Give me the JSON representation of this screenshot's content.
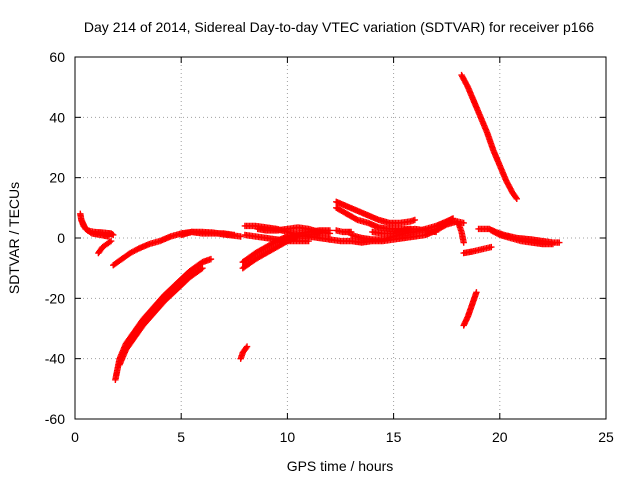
{
  "chart_data": {
    "type": "scatter",
    "title": "Day 214 of 2014, Sidereal Day-to-day VTEC variation (SDTVAR) for receiver p166",
    "xlabel": "GPS time / hours",
    "ylabel": "SDTVAR / TECUs",
    "xlim": [
      0,
      25
    ],
    "ylim": [
      -60,
      60
    ],
    "xticks": [
      0,
      5,
      10,
      15,
      20,
      25
    ],
    "yticks": [
      -60,
      -40,
      -20,
      0,
      20,
      40,
      60
    ],
    "grid": true,
    "marker": "+",
    "color": "#ff0000",
    "series": [
      {
        "points": [
          [
            0.25,
            8
          ],
          [
            0.3,
            6
          ],
          [
            0.4,
            4
          ],
          [
            0.6,
            2.5
          ],
          [
            0.9,
            2
          ],
          [
            1.3,
            1.8
          ],
          [
            1.7,
            1.5
          ],
          [
            1.8,
            1
          ]
        ]
      },
      {
        "points": [
          [
            0.3,
            6
          ],
          [
            0.5,
            3
          ],
          [
            0.8,
            1.5
          ],
          [
            1.2,
            1
          ],
          [
            1.6,
            0.5
          ]
        ]
      },
      {
        "points": [
          [
            1.1,
            -5
          ],
          [
            1.3,
            -3
          ],
          [
            1.5,
            -2
          ],
          [
            1.7,
            -1
          ]
        ]
      },
      {
        "points": [
          [
            1.8,
            -9
          ],
          [
            2.2,
            -7
          ],
          [
            2.6,
            -5
          ],
          [
            3.0,
            -3.5
          ],
          [
            3.5,
            -2
          ],
          [
            4.0,
            -1
          ],
          [
            4.5,
            0.5
          ],
          [
            5.0,
            1.5
          ],
          [
            5.5,
            2
          ],
          [
            6.0,
            1.5
          ],
          [
            6.5,
            1.5
          ],
          [
            7.0,
            1.5
          ],
          [
            7.5,
            1
          ]
        ]
      },
      {
        "points": [
          [
            5.0,
            1
          ],
          [
            5.5,
            2
          ],
          [
            6.0,
            2
          ],
          [
            6.5,
            1.8
          ],
          [
            7.0,
            1.2
          ],
          [
            7.8,
            0.5
          ]
        ]
      },
      {
        "points": [
          [
            1.9,
            -47
          ],
          [
            2.1,
            -40
          ],
          [
            2.4,
            -35
          ],
          [
            2.8,
            -31
          ],
          [
            3.2,
            -27
          ],
          [
            3.7,
            -23
          ],
          [
            4.2,
            -19
          ],
          [
            4.8,
            -15
          ],
          [
            5.4,
            -11
          ],
          [
            6.0,
            -8
          ],
          [
            6.4,
            -7
          ]
        ]
      },
      {
        "points": [
          [
            2.1,
            -42
          ],
          [
            2.4,
            -37
          ],
          [
            2.8,
            -33
          ],
          [
            3.2,
            -29
          ],
          [
            3.7,
            -25
          ],
          [
            4.2,
            -21
          ],
          [
            4.8,
            -17
          ],
          [
            5.4,
            -13
          ],
          [
            6.0,
            -10
          ]
        ]
      },
      {
        "points": [
          [
            7.8,
            -40
          ],
          [
            7.9,
            -38
          ],
          [
            8.1,
            -36
          ]
        ]
      },
      {
        "points": [
          [
            7.9,
            -8
          ],
          [
            8.5,
            -5
          ],
          [
            9.0,
            -3
          ],
          [
            9.5,
            -1
          ],
          [
            10.0,
            0.5
          ],
          [
            10.5,
            1.5
          ],
          [
            11.0,
            2
          ],
          [
            11.5,
            2.5
          ],
          [
            12.0,
            2.5
          ]
        ]
      },
      {
        "points": [
          [
            7.9,
            -10
          ],
          [
            8.5,
            -7
          ],
          [
            9.0,
            -5
          ],
          [
            9.5,
            -3
          ],
          [
            10.0,
            -1
          ],
          [
            10.5,
            0.5
          ],
          [
            11.0,
            1
          ],
          [
            11.5,
            1.5
          ]
        ]
      },
      {
        "points": [
          [
            8.0,
            4
          ],
          [
            8.5,
            4
          ],
          [
            9.0,
            3.5
          ],
          [
            9.5,
            3
          ],
          [
            10.0,
            2
          ],
          [
            10.5,
            1
          ],
          [
            11.0,
            0.5
          ],
          [
            11.5,
            0
          ],
          [
            12.0,
            -0.5
          ]
        ]
      },
      {
        "points": [
          [
            8.0,
            1
          ],
          [
            8.5,
            0.5
          ],
          [
            9.0,
            0
          ],
          [
            9.5,
            -0.5
          ],
          [
            10.0,
            -1
          ],
          [
            10.5,
            -1
          ],
          [
            11.0,
            -1
          ]
        ]
      },
      {
        "points": [
          [
            8.6,
            3
          ],
          [
            9.0,
            2.5
          ],
          [
            9.5,
            2.5
          ],
          [
            10.0,
            3
          ],
          [
            10.5,
            3.5
          ],
          [
            11.0,
            3
          ],
          [
            11.5,
            2
          ],
          [
            12.0,
            1.5
          ]
        ]
      },
      {
        "points": [
          [
            12.3,
            12
          ],
          [
            12.8,
            10.5
          ],
          [
            13.3,
            9
          ],
          [
            13.8,
            7.5
          ],
          [
            14.3,
            6
          ],
          [
            14.8,
            5
          ],
          [
            15.3,
            5
          ],
          [
            15.8,
            5.5
          ],
          [
            16.0,
            6
          ]
        ]
      },
      {
        "points": [
          [
            12.3,
            10
          ],
          [
            12.8,
            8
          ],
          [
            13.3,
            6
          ],
          [
            13.8,
            5
          ],
          [
            14.3,
            3.5
          ],
          [
            14.8,
            3
          ],
          [
            15.3,
            3
          ],
          [
            15.8,
            3
          ]
        ]
      },
      {
        "points": [
          [
            12.3,
            2.5
          ],
          [
            12.6,
            2
          ],
          [
            13.0,
            2
          ]
        ]
      },
      {
        "points": [
          [
            12.0,
            -0.5
          ],
          [
            12.5,
            -1
          ],
          [
            13.0,
            -1
          ],
          [
            13.5,
            -1.5
          ],
          [
            14.0,
            -1
          ],
          [
            14.5,
            -1
          ],
          [
            15.0,
            -0.5
          ],
          [
            15.5,
            0
          ],
          [
            16.0,
            0.5
          ],
          [
            16.5,
            1
          ],
          [
            17.0,
            2.5
          ],
          [
            17.5,
            4.5
          ],
          [
            18.0,
            5.5
          ],
          [
            18.3,
            5
          ]
        ]
      },
      {
        "points": [
          [
            13.0,
            1
          ],
          [
            13.5,
            0
          ],
          [
            14.0,
            -0.5
          ],
          [
            14.5,
            -0.5
          ],
          [
            15.0,
            0.5
          ],
          [
            15.5,
            1.5
          ],
          [
            16.0,
            2
          ],
          [
            16.5,
            3
          ],
          [
            17.0,
            4
          ],
          [
            17.5,
            5.5
          ],
          [
            17.8,
            6.5
          ]
        ]
      },
      {
        "points": [
          [
            14.0,
            2
          ],
          [
            14.5,
            1.5
          ],
          [
            15.0,
            1.5
          ],
          [
            15.5,
            2.5
          ],
          [
            16.0,
            3
          ],
          [
            16.5,
            2.5
          ],
          [
            17.0,
            2
          ]
        ]
      },
      {
        "points": [
          [
            18.0,
            5
          ],
          [
            18.1,
            4
          ],
          [
            18.2,
            2
          ],
          [
            18.3,
            -1.5
          ]
        ]
      },
      {
        "points": [
          [
            18.2,
            54
          ],
          [
            18.5,
            50
          ],
          [
            18.8,
            45
          ],
          [
            19.1,
            40
          ],
          [
            19.4,
            35
          ],
          [
            19.7,
            29
          ],
          [
            20.0,
            24
          ],
          [
            20.3,
            19
          ],
          [
            20.6,
            15
          ],
          [
            20.8,
            13
          ]
        ]
      },
      {
        "points": [
          [
            18.3,
            -29
          ],
          [
            18.5,
            -26
          ],
          [
            18.7,
            -22
          ],
          [
            18.9,
            -18
          ]
        ]
      },
      {
        "points": [
          [
            18.3,
            -5
          ],
          [
            18.7,
            -4.5
          ],
          [
            19.0,
            -4
          ],
          [
            19.3,
            -3.5
          ],
          [
            19.6,
            -3
          ]
        ]
      },
      {
        "points": [
          [
            19.0,
            3
          ],
          [
            19.5,
            3
          ],
          [
            19.8,
            2
          ],
          [
            20.2,
            1
          ],
          [
            20.8,
            0
          ],
          [
            21.5,
            -0.5
          ],
          [
            22.0,
            -1
          ],
          [
            22.5,
            -1.5
          ],
          [
            22.8,
            -1.5
          ]
        ]
      },
      {
        "points": [
          [
            19.6,
            2.5
          ],
          [
            20.0,
            1
          ],
          [
            20.5,
            0
          ],
          [
            21.0,
            -1
          ],
          [
            21.5,
            -1.5
          ],
          [
            22.0,
            -2
          ],
          [
            22.5,
            -2
          ]
        ]
      }
    ]
  }
}
